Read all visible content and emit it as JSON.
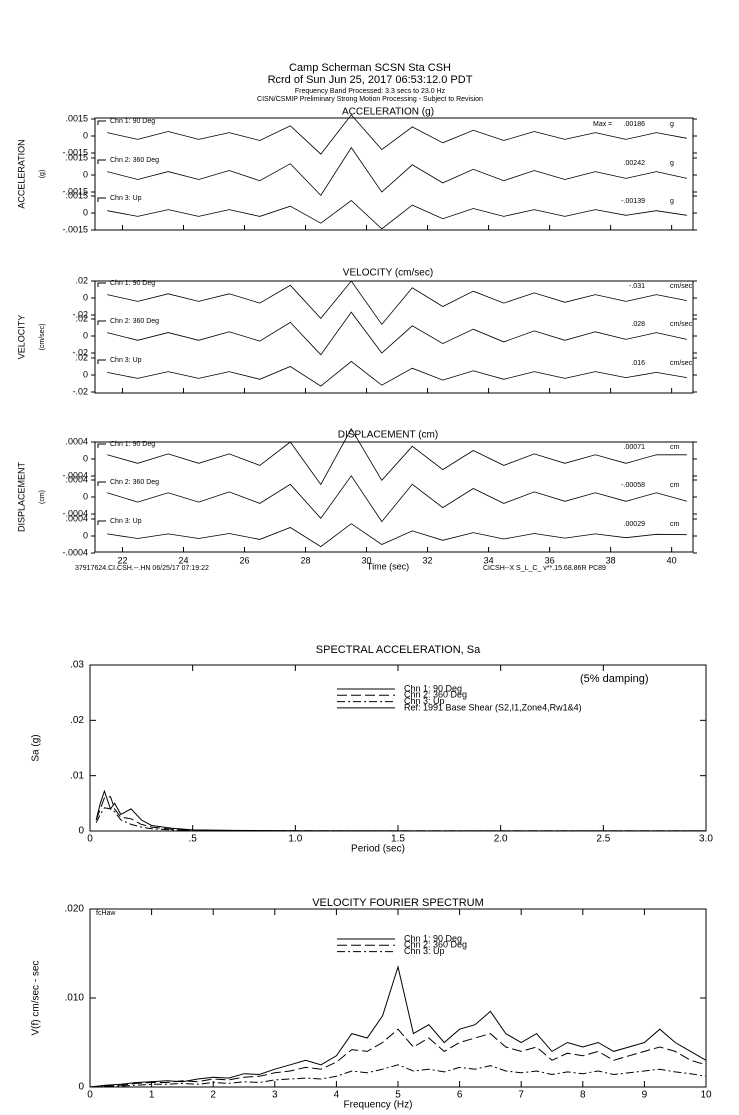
{
  "chart_data": [
    {
      "type": "seismogram",
      "header": [
        "Camp Scherman    SCSN Sta CSH",
        "Rcrd of Sun Jun 25, 2017 06:53:12.0 PDT",
        "Frequency Band Processed: 3.3 secs to 23.0 Hz",
        "CISN/CSMIP Preliminary Strong Motion Processing - Subject to Revision"
      ],
      "xlabel": "Time (sec)",
      "xlim": [
        21.1,
        40.7
      ],
      "xticks": [
        22,
        24,
        26,
        28,
        30,
        32,
        34,
        36,
        38,
        40
      ],
      "x": [
        21.5,
        22.5,
        23.5,
        24.5,
        25.5,
        26.5,
        27.5,
        28.5,
        29.5,
        30.5,
        31.5,
        32.5,
        33.5,
        34.5,
        35.5,
        36.5,
        37.5,
        38.5,
        39.5,
        40.5
      ],
      "footer_left": "37917624.CI.CSH.--.HN 06/25/17 07:19:22",
      "footer_right": "CICSH--X  S_L_C_  v**.15.68.86R PC89",
      "max_label": "Max =",
      "panels": [
        {
          "title": "ACCELERATION (g)",
          "ylabel": "ACCELERATION",
          "yunit": "(g)",
          "unit": "g",
          "ylim": [
            -0.0015,
            0.0015
          ],
          "yticks": [
            {
              "value": 0.0015,
              "label": ".0015"
            },
            0,
            {
              "value": -0.0015,
              "label": "-.0015"
            }
          ],
          "traces": [
            {
              "name": "Chn 1: 90 Deg",
              "peak": 0.00186,
              "peak_label": ".00186",
              "values": [
                0.0003,
                -0.0003,
                0.0004,
                -0.0003,
                0.0003,
                -0.0004,
                0.0009,
                -0.0016,
                0.00186,
                -0.0012,
                0.0008,
                -0.0006,
                0.0005,
                -0.0004,
                0.0004,
                -0.0003,
                0.0003,
                -0.0003,
                0.0003,
                -0.0002
              ]
            },
            {
              "name": "Chn 2: 360 Deg",
              "peak": 0.00242,
              "peak_label": ".00242",
              "values": [
                0.0003,
                -0.0004,
                0.0003,
                -0.0004,
                0.0004,
                -0.0005,
                0.001,
                -0.0018,
                0.00242,
                -0.0015,
                0.0009,
                -0.0007,
                0.0005,
                -0.0005,
                0.0004,
                -0.0004,
                0.0003,
                -0.0003,
                0.0003,
                -0.0003
              ]
            },
            {
              "name": "Chn 3: Up",
              "peak": -0.00139,
              "peak_label": "-.00139",
              "values": [
                0.0002,
                -0.0003,
                0.0003,
                -0.0003,
                0.0003,
                -0.0003,
                0.0006,
                -0.0009,
                0.0011,
                -0.00139,
                0.0007,
                -0.0005,
                0.0004,
                -0.0003,
                0.0003,
                -0.0003,
                0.0003,
                -0.0002,
                0.0002,
                -0.0002
              ]
            }
          ]
        },
        {
          "title": "VELOCITY (cm/sec)",
          "ylabel": "VELOCITY",
          "yunit": "(cm/sec)",
          "unit": "cm/sec",
          "ylim": [
            -0.02,
            0.02
          ],
          "yticks": [
            {
              "value": 0.02,
              "label": ".02"
            },
            0,
            {
              "value": -0.02,
              "label": "-.02"
            }
          ],
          "traces": [
            {
              "name": "Chn 1: 90 Deg",
              "peak": -0.031,
              "peak_label": "-.031",
              "values": [
                0.004,
                -0.004,
                0.005,
                -0.004,
                0.005,
                -0.006,
                0.015,
                -0.024,
                0.02,
                -0.031,
                0.012,
                -0.01,
                0.008,
                -0.006,
                0.006,
                -0.005,
                0.004,
                -0.004,
                0.004,
                -0.003
              ]
            },
            {
              "name": "Chn 2: 360 Deg",
              "peak": 0.028,
              "peak_label": ".028",
              "values": [
                0.004,
                -0.005,
                0.004,
                -0.005,
                0.005,
                -0.006,
                0.016,
                -0.022,
                0.028,
                -0.02,
                0.012,
                -0.009,
                0.008,
                -0.007,
                0.006,
                -0.005,
                0.005,
                -0.004,
                0.004,
                -0.004
              ]
            },
            {
              "name": "Chn 3: Up",
              "peak": 0.016,
              "peak_label": ".016",
              "values": [
                0.003,
                -0.004,
                0.004,
                -0.004,
                0.004,
                -0.005,
                0.01,
                -0.013,
                0.016,
                -0.012,
                0.008,
                -0.006,
                0.005,
                -0.005,
                0.004,
                -0.004,
                0.004,
                -0.003,
                0.003,
                -0.003
              ]
            }
          ]
        },
        {
          "title": "DISPLACEMENT (cm)",
          "ylabel": "DISPLACEMENT",
          "yunit": "(cm)",
          "unit": "cm",
          "ylim": [
            -0.0004,
            0.0004
          ],
          "yticks": [
            {
              "value": 0.0004,
              "label": ".0004"
            },
            0,
            {
              "value": -0.0004,
              "label": "-.0004"
            }
          ],
          "traces": [
            {
              "name": "Chn 1: 90 Deg",
              "peak": 0.00071,
              "peak_label": ".00071",
              "values": [
                0.0001,
                -0.0001,
                0.00012,
                -0.0001,
                0.00012,
                -0.00015,
                0.0004,
                -0.0006,
                0.00071,
                -0.0005,
                0.0003,
                -0.00025,
                0.0002,
                -0.00015,
                0.00012,
                -0.0001,
                0.0001,
                -0.0001,
                0.0001,
                0.0001
              ]
            },
            {
              "name": "Chn 2: 360 Deg",
              "peak": -0.00058,
              "peak_label": "-.00058",
              "values": [
                0.0001,
                -0.00012,
                0.0001,
                -0.00012,
                0.00012,
                -0.00015,
                0.0003,
                -0.0005,
                0.0005,
                -0.00058,
                0.0003,
                -0.00025,
                0.0002,
                -0.00015,
                0.00012,
                -0.0001,
                0.0001,
                -0.0001,
                0.0001,
                -0.0001
              ]
            },
            {
              "name": "Chn 3: Up",
              "peak": 0.00029,
              "peak_label": ".00029",
              "values": [
                5e-05,
                -6e-05,
                5e-05,
                -6e-05,
                6e-05,
                -8e-05,
                0.0002,
                -0.00025,
                0.00029,
                -0.0002,
                0.00012,
                -0.0001,
                8e-05,
                -7e-05,
                6e-05,
                -5e-05,
                5e-05,
                -4e-05,
                4e-05,
                3e-05
              ]
            }
          ]
        }
      ]
    },
    {
      "type": "line",
      "title": "SPECTRAL ACCELERATION, Sa",
      "xlabel": "Period (sec)",
      "ylabel": "Sa (g)",
      "annotation": "(5% damping)",
      "xlim": [
        0,
        3
      ],
      "xticks": [
        0,
        {
          "value": 0.5,
          "label": ".5"
        },
        {
          "value": 1,
          "label": "1.0"
        },
        {
          "value": 1.5,
          "label": "1.5"
        },
        {
          "value": 2,
          "label": "2.0"
        },
        {
          "value": 2.5,
          "label": "2.5"
        },
        {
          "value": 3,
          "label": "3.0"
        }
      ],
      "ylim": [
        0,
        0.03
      ],
      "yticks": [
        0,
        {
          "value": 0.01,
          "label": ".01"
        },
        {
          "value": 0.02,
          "label": ".02"
        },
        {
          "value": 0.03,
          "label": ".03"
        }
      ],
      "x": [
        0.03,
        0.05,
        0.07,
        0.1,
        0.12,
        0.15,
        0.2,
        0.25,
        0.3,
        0.4,
        0.5,
        0.7,
        1.0,
        1.5,
        2.0,
        3.0
      ],
      "series": [
        {
          "name": "Chn 1: 90 Deg",
          "color": "#000000",
          "dash": "solid",
          "values": [
            0.002,
            0.005,
            0.0072,
            0.004,
            0.005,
            0.003,
            0.004,
            0.002,
            0.001,
            0.0005,
            0.0002,
            0.0001,
            5e-05,
            2e-05,
            1e-05,
            1e-05
          ]
        },
        {
          "name": "Chn 2: 360 Deg",
          "color": "#000000",
          "dash": "long-dash",
          "values": [
            0.002,
            0.004,
            0.006,
            0.0062,
            0.004,
            0.0025,
            0.0022,
            0.0012,
            0.0007,
            0.0003,
            0.0001,
            5e-05,
            3e-05,
            1e-05,
            1e-05,
            1e-05
          ]
        },
        {
          "name": "Chn 3: Up",
          "color": "#000000",
          "dash": "dash-dot",
          "values": [
            0.0015,
            0.003,
            0.0042,
            0.004,
            0.0035,
            0.002,
            0.0012,
            0.0007,
            0.0004,
            0.0002,
            0.0001,
            4e-05,
            2e-05,
            1e-05,
            1e-05,
            1e-05
          ]
        },
        {
          "name": "Ref: 1991 Base Shear (S2,I1,Zone4,Rw1&4)",
          "color": "#000000",
          "dash": "solid"
        }
      ]
    },
    {
      "type": "line",
      "title": "VELOCITY FOURIER SPECTRUM",
      "xlabel": "Frequency (Hz)",
      "ylabel": "V(f)   cm/sec - sec",
      "annotation": "fcHaw",
      "xlim": [
        0,
        10
      ],
      "xticks": [
        0,
        1,
        2,
        3,
        4,
        5,
        6,
        7,
        8,
        9,
        10
      ],
      "ylim": [
        0,
        0.02
      ],
      "yticks": [
        0,
        {
          "value": 0.01,
          "label": ".010"
        },
        {
          "value": 0.02,
          "label": ".020"
        }
      ],
      "x": [
        0,
        0.25,
        0.5,
        0.75,
        1,
        1.25,
        1.5,
        1.75,
        2,
        2.25,
        2.5,
        2.75,
        3,
        3.25,
        3.5,
        3.75,
        4,
        4.25,
        4.5,
        4.75,
        5,
        5.25,
        5.5,
        5.75,
        6,
        6.25,
        6.5,
        6.75,
        7,
        7.25,
        7.5,
        7.75,
        8,
        8.25,
        8.5,
        8.75,
        9,
        9.25,
        9.5,
        9.75,
        10
      ],
      "series": [
        {
          "name": "Chn 1: 90 Deg",
          "color": "#000000",
          "dash": "solid",
          "values": [
            0,
            0.0002,
            0.0003,
            0.0005,
            0.0006,
            0.0007,
            0.0006,
            0.0009,
            0.0011,
            0.001,
            0.0015,
            0.0014,
            0.002,
            0.0025,
            0.003,
            0.0025,
            0.0035,
            0.006,
            0.0055,
            0.008,
            0.0135,
            0.006,
            0.007,
            0.005,
            0.0065,
            0.007,
            0.0085,
            0.006,
            0.005,
            0.006,
            0.004,
            0.005,
            0.0045,
            0.005,
            0.004,
            0.0045,
            0.005,
            0.0065,
            0.005,
            0.004,
            0.003
          ]
        },
        {
          "name": "Chn 2: 360 Deg",
          "color": "#000000",
          "dash": "long-dash",
          "values": [
            0,
            0.0001,
            0.0002,
            0.0004,
            0.0005,
            0.0005,
            0.0007,
            0.0006,
            0.0009,
            0.0008,
            0.0011,
            0.0012,
            0.0016,
            0.0018,
            0.0022,
            0.002,
            0.0028,
            0.0042,
            0.004,
            0.005,
            0.0065,
            0.0045,
            0.0055,
            0.004,
            0.005,
            0.0055,
            0.006,
            0.0045,
            0.004,
            0.0045,
            0.003,
            0.0038,
            0.0035,
            0.004,
            0.003,
            0.0035,
            0.004,
            0.0045,
            0.004,
            0.003,
            0.0025
          ]
        },
        {
          "name": "Chn 3: Up",
          "color": "#000000",
          "dash": "dash-dot",
          "values": [
            0,
            0.0001,
            0.0001,
            0.0002,
            0.0003,
            0.0003,
            0.0004,
            0.0003,
            0.0005,
            0.0004,
            0.0006,
            0.0005,
            0.0008,
            0.0009,
            0.001,
            0.0009,
            0.0012,
            0.0018,
            0.0016,
            0.002,
            0.0025,
            0.0018,
            0.002,
            0.0017,
            0.0022,
            0.002,
            0.0024,
            0.0018,
            0.0016,
            0.0018,
            0.0014,
            0.0017,
            0.0015,
            0.0018,
            0.0014,
            0.0016,
            0.0018,
            0.002,
            0.0017,
            0.0015,
            0.0012
          ]
        }
      ]
    }
  ]
}
